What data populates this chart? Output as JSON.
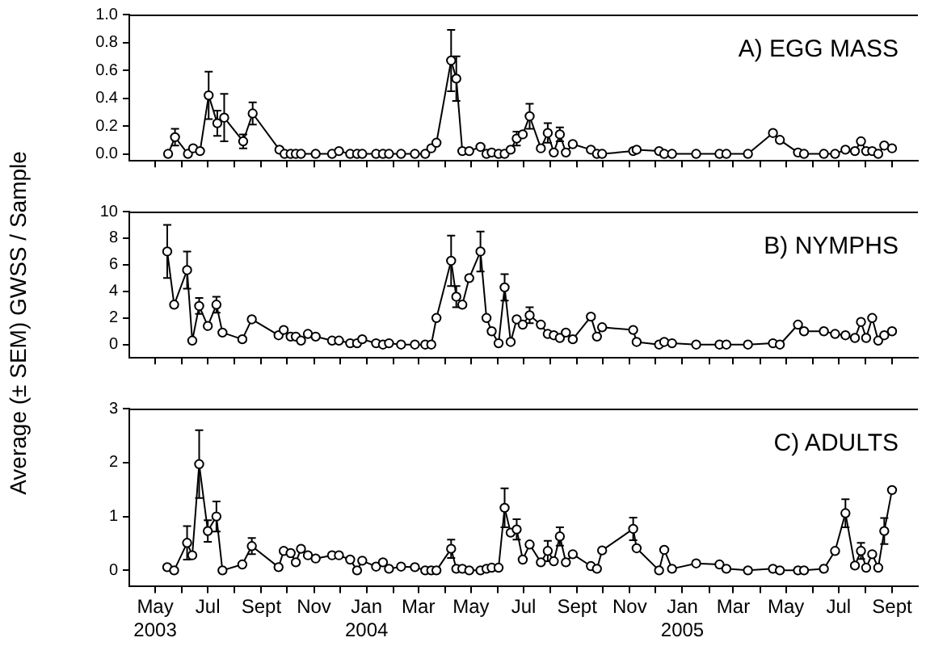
{
  "chart_data": [
    {
      "type": "line",
      "annotations": [
        "A) EGG MASS"
      ],
      "tick_labels": "y",
      "marker": "circle",
      "line_style": "solid",
      "xlim": [
        "2003-04-01",
        "2005-10-01"
      ],
      "xticks": [
        {
          "value": "2003-05-01",
          "label": null
        },
        {
          "value": "2003-06-01",
          "label": null
        },
        {
          "value": "2003-07-01",
          "label": null
        },
        {
          "value": "2003-08-01",
          "label": null
        },
        {
          "value": "2003-09-01",
          "label": null
        },
        {
          "value": "2003-10-01",
          "label": null
        },
        {
          "value": "2003-11-01",
          "label": null
        },
        {
          "value": "2003-12-01",
          "label": null
        },
        {
          "value": "2004-01-01",
          "label": null
        },
        {
          "value": "2004-02-01",
          "label": null
        },
        {
          "value": "2004-03-01",
          "label": null
        },
        {
          "value": "2004-04-01",
          "label": null
        },
        {
          "value": "2004-05-01",
          "label": null
        },
        {
          "value": "2004-06-01",
          "label": null
        },
        {
          "value": "2004-07-01",
          "label": null
        },
        {
          "value": "2004-08-01",
          "label": null
        },
        {
          "value": "2004-09-01",
          "label": null
        },
        {
          "value": "2004-10-01",
          "label": null
        },
        {
          "value": "2004-11-01",
          "label": null
        },
        {
          "value": "2004-12-01",
          "label": null
        },
        {
          "value": "2005-01-01",
          "label": null
        },
        {
          "value": "2005-02-01",
          "label": null
        },
        {
          "value": "2005-03-01",
          "label": null
        },
        {
          "value": "2005-04-01",
          "label": null
        },
        {
          "value": "2005-05-01",
          "label": null
        },
        {
          "value": "2005-06-01",
          "label": null
        },
        {
          "value": "2005-07-01",
          "label": null
        },
        {
          "value": "2005-08-01",
          "label": null
        },
        {
          "value": "2005-09-01",
          "label": null
        }
      ],
      "ylim": [
        -0.05,
        1.0
      ],
      "yticks": [
        {
          "value": 0,
          "label": "0.0"
        },
        0.2,
        0.4,
        0.6,
        0.8,
        {
          "value": 1,
          "label": "1.0"
        }
      ],
      "series": [
        {
          "color": "#000000",
          "x": [
            "2003-05-16",
            "2003-05-24",
            "2003-06-08",
            "2003-06-14",
            "2003-06-22",
            "2003-07-02",
            "2003-07-12",
            "2003-07-20",
            "2003-08-11",
            "2003-08-22",
            "2003-09-22",
            "2003-09-28",
            "2003-10-05",
            "2003-10-11",
            "2003-10-17",
            "2003-11-03",
            "2003-11-22",
            "2003-11-30",
            "2003-12-13",
            "2003-12-21",
            "2003-12-27",
            "2004-01-12",
            "2004-01-20",
            "2004-01-27",
            "2004-02-10",
            "2004-02-26",
            "2004-03-09",
            "2004-03-16",
            "2004-03-22",
            "2004-04-08",
            "2004-04-14",
            "2004-04-21",
            "2004-04-29",
            "2004-05-12",
            "2004-05-19",
            "2004-05-25",
            "2004-06-02",
            "2004-06-09",
            "2004-06-16",
            "2004-06-23",
            "2004-06-30",
            "2004-07-08",
            "2004-07-21",
            "2004-07-29",
            "2004-08-05",
            "2004-08-12",
            "2004-08-19",
            "2004-08-27",
            "2004-09-17",
            "2004-09-24",
            "2004-09-30",
            "2004-11-05",
            "2004-11-09",
            "2004-12-05",
            "2004-12-11",
            "2004-12-20",
            "2005-01-17",
            "2005-02-13",
            "2005-02-21",
            "2005-03-18",
            "2005-04-16",
            "2005-04-24",
            "2005-05-15",
            "2005-05-22",
            "2005-06-14",
            "2005-06-27",
            "2005-07-09",
            "2005-07-20",
            "2005-07-27",
            "2005-08-02",
            "2005-08-09",
            "2005-08-16",
            "2005-08-23",
            "2005-09-01"
          ],
          "values": [
            0,
            0.12,
            0,
            0.04,
            0.02,
            0.42,
            0.22,
            0.26,
            0.09,
            0.29,
            0.03,
            0,
            0,
            0,
            0,
            0,
            0,
            0.02,
            0,
            0,
            0,
            0,
            0,
            0,
            0,
            0,
            0,
            0.04,
            0.08,
            0.67,
            0.54,
            0.02,
            0.02,
            0.05,
            0,
            0.01,
            0,
            0,
            0.03,
            0.11,
            0.14,
            0.27,
            0.04,
            0.15,
            0.01,
            0.14,
            0.01,
            0.07,
            0.03,
            0,
            0,
            0.02,
            0.03,
            0.02,
            0,
            0,
            0,
            0,
            0,
            0,
            0.15,
            0.1,
            0.01,
            0,
            0,
            0,
            0.03,
            0.02,
            0.09,
            0.02,
            0.02,
            0,
            0.06,
            0.04
          ],
          "errors": [
            null,
            0.06,
            null,
            null,
            null,
            0.17,
            0.09,
            0.17,
            0.05,
            0.08,
            null,
            null,
            null,
            null,
            null,
            null,
            null,
            null,
            null,
            null,
            null,
            null,
            null,
            null,
            null,
            null,
            null,
            null,
            null,
            0.22,
            0.16,
            null,
            null,
            null,
            null,
            null,
            null,
            null,
            null,
            0.05,
            null,
            0.09,
            null,
            0.07,
            null,
            0.05,
            null,
            null,
            null,
            null,
            null,
            null,
            null,
            null,
            null,
            null,
            null,
            null,
            null,
            null,
            null,
            null,
            null,
            null,
            null,
            null,
            null,
            null,
            null,
            null,
            null,
            null,
            null,
            null
          ]
        }
      ]
    },
    {
      "type": "line",
      "annotations": [
        "B) NYMPHS"
      ],
      "ylabel": "Average (± SEM) GWSS / Sample",
      "tick_labels": "y",
      "marker": "circle",
      "line_style": "solid",
      "xlim": [
        "2003-04-01",
        "2005-10-01"
      ],
      "xticks": [
        {
          "value": "2003-05-01",
          "label": null
        },
        {
          "value": "2003-06-01",
          "label": null
        },
        {
          "value": "2003-07-01",
          "label": null
        },
        {
          "value": "2003-08-01",
          "label": null
        },
        {
          "value": "2003-09-01",
          "label": null
        },
        {
          "value": "2003-10-01",
          "label": null
        },
        {
          "value": "2003-11-01",
          "label": null
        },
        {
          "value": "2003-12-01",
          "label": null
        },
        {
          "value": "2004-01-01",
          "label": null
        },
        {
          "value": "2004-02-01",
          "label": null
        },
        {
          "value": "2004-03-01",
          "label": null
        },
        {
          "value": "2004-04-01",
          "label": null
        },
        {
          "value": "2004-05-01",
          "label": null
        },
        {
          "value": "2004-06-01",
          "label": null
        },
        {
          "value": "2004-07-01",
          "label": null
        },
        {
          "value": "2004-08-01",
          "label": null
        },
        {
          "value": "2004-09-01",
          "label": null
        },
        {
          "value": "2004-10-01",
          "label": null
        },
        {
          "value": "2004-11-01",
          "label": null
        },
        {
          "value": "2004-12-01",
          "label": null
        },
        {
          "value": "2005-01-01",
          "label": null
        },
        {
          "value": "2005-02-01",
          "label": null
        },
        {
          "value": "2005-03-01",
          "label": null
        },
        {
          "value": "2005-04-01",
          "label": null
        },
        {
          "value": "2005-05-01",
          "label": null
        },
        {
          "value": "2005-06-01",
          "label": null
        },
        {
          "value": "2005-07-01",
          "label": null
        },
        {
          "value": "2005-08-01",
          "label": null
        },
        {
          "value": "2005-09-01",
          "label": null
        }
      ],
      "ylim": [
        -1,
        10
      ],
      "yticks": [
        0,
        2,
        4,
        6,
        8,
        10
      ],
      "series": [
        {
          "color": "#000000",
          "x": [
            "2003-05-15",
            "2003-05-23",
            "2003-06-07",
            "2003-06-13",
            "2003-06-21",
            "2003-07-01",
            "2003-07-11",
            "2003-07-18",
            "2003-08-10",
            "2003-08-21",
            "2003-09-21",
            "2003-09-27",
            "2003-10-05",
            "2003-10-11",
            "2003-10-17",
            "2003-10-25",
            "2003-11-03",
            "2003-11-22",
            "2003-11-30",
            "2003-12-13",
            "2003-12-21",
            "2003-12-27",
            "2004-01-12",
            "2004-01-20",
            "2004-01-27",
            "2004-02-10",
            "2004-02-26",
            "2004-03-09",
            "2004-03-16",
            "2004-03-22",
            "2004-04-08",
            "2004-04-14",
            "2004-04-21",
            "2004-04-29",
            "2004-05-12",
            "2004-05-19",
            "2004-05-25",
            "2004-06-02",
            "2004-06-09",
            "2004-06-16",
            "2004-06-23",
            "2004-06-30",
            "2004-07-08",
            "2004-07-21",
            "2004-07-29",
            "2004-08-05",
            "2004-08-12",
            "2004-08-19",
            "2004-08-27",
            "2004-09-17",
            "2004-09-24",
            "2004-09-30",
            "2004-11-05",
            "2004-11-09",
            "2004-12-05",
            "2004-12-11",
            "2004-12-20",
            "2005-01-17",
            "2005-02-13",
            "2005-02-21",
            "2005-03-18",
            "2005-04-16",
            "2005-04-24",
            "2005-05-15",
            "2005-05-22",
            "2005-06-14",
            "2005-06-27",
            "2005-07-09",
            "2005-07-20",
            "2005-07-27",
            "2005-08-02",
            "2005-08-09",
            "2005-08-16",
            "2005-08-23",
            "2005-09-01"
          ],
          "values": [
            7.0,
            3.0,
            5.6,
            0.3,
            2.9,
            1.4,
            3.0,
            0.9,
            0.4,
            1.9,
            0.7,
            1.1,
            0.6,
            0.6,
            0.3,
            0.8,
            0.6,
            0.3,
            0.3,
            0.1,
            0.1,
            0.4,
            0.1,
            0,
            0.1,
            0,
            0,
            0,
            0,
            2.0,
            6.3,
            3.6,
            3.0,
            5.0,
            7.0,
            2.0,
            1.0,
            0.1,
            4.3,
            0.2,
            1.9,
            1.5,
            2.2,
            1.5,
            0.8,
            0.7,
            0.5,
            0.9,
            0.4,
            2.1,
            0.6,
            1.3,
            1.1,
            0.2,
            0,
            0.2,
            0.1,
            0,
            0,
            0,
            0,
            0.1,
            0,
            1.5,
            1.0,
            1.0,
            0.8,
            0.7,
            0.5,
            1.7,
            0.5,
            2.0,
            0.3,
            0.7,
            1.0
          ],
          "errors": [
            2.0,
            null,
            1.4,
            null,
            0.6,
            null,
            0.6,
            null,
            null,
            null,
            null,
            null,
            null,
            null,
            null,
            null,
            null,
            null,
            null,
            null,
            null,
            null,
            null,
            null,
            null,
            null,
            null,
            null,
            null,
            null,
            1.9,
            0.8,
            null,
            null,
            1.5,
            null,
            null,
            null,
            1.0,
            null,
            null,
            null,
            0.6,
            null,
            null,
            null,
            null,
            null,
            null,
            null,
            null,
            null,
            null,
            null,
            null,
            null,
            null,
            null,
            null,
            null,
            null,
            null,
            null,
            null,
            null,
            null,
            null,
            null,
            null,
            null,
            null,
            null,
            null,
            null,
            null
          ]
        }
      ]
    },
    {
      "type": "line",
      "annotations": [
        "C) ADULTS"
      ],
      "marker": "circle",
      "line_style": "solid",
      "xlim": [
        "2003-04-01",
        "2005-10-01"
      ],
      "xticks": [
        {
          "value": "2003-05-01",
          "label": "May 2003"
        },
        {
          "value": "2003-06-01",
          "label": null
        },
        {
          "value": "2003-07-01",
          "label": "Jul"
        },
        {
          "value": "2003-08-01",
          "label": null
        },
        {
          "value": "2003-09-01",
          "label": "Sept"
        },
        {
          "value": "2003-10-01",
          "label": null
        },
        {
          "value": "2003-11-01",
          "label": "Nov"
        },
        {
          "value": "2003-12-01",
          "label": null
        },
        {
          "value": "2004-01-01",
          "label": "Jan 2004"
        },
        {
          "value": "2004-02-01",
          "label": null
        },
        {
          "value": "2004-03-01",
          "label": "Mar"
        },
        {
          "value": "2004-04-01",
          "label": null
        },
        {
          "value": "2004-05-01",
          "label": "May"
        },
        {
          "value": "2004-06-01",
          "label": null
        },
        {
          "value": "2004-07-01",
          "label": "Jul"
        },
        {
          "value": "2004-08-01",
          "label": null
        },
        {
          "value": "2004-09-01",
          "label": "Sept"
        },
        {
          "value": "2004-10-01",
          "label": null
        },
        {
          "value": "2004-11-01",
          "label": "Nov"
        },
        {
          "value": "2004-12-01",
          "label": null
        },
        {
          "value": "2005-01-01",
          "label": "Jan 2005"
        },
        {
          "value": "2005-02-01",
          "label": null
        },
        {
          "value": "2005-03-01",
          "label": "Mar"
        },
        {
          "value": "2005-04-01",
          "label": null
        },
        {
          "value": "2005-05-01",
          "label": "May"
        },
        {
          "value": "2005-06-01",
          "label": null
        },
        {
          "value": "2005-07-01",
          "label": "Jul"
        },
        {
          "value": "2005-08-01",
          "label": null
        },
        {
          "value": "2005-09-01",
          "label": "Sept"
        }
      ],
      "ylim": [
        -0.3,
        3
      ],
      "yticks": [
        0,
        1,
        2,
        3
      ],
      "series": [
        {
          "color": "#000000",
          "x": [
            "2003-05-15",
            "2003-05-23",
            "2003-06-07",
            "2003-06-13",
            "2003-06-21",
            "2003-07-01",
            "2003-07-11",
            "2003-07-18",
            "2003-08-10",
            "2003-08-21",
            "2003-09-21",
            "2003-09-27",
            "2003-10-05",
            "2003-10-11",
            "2003-10-17",
            "2003-10-25",
            "2003-11-03",
            "2003-11-22",
            "2003-11-30",
            "2003-12-13",
            "2003-12-21",
            "2003-12-27",
            "2004-01-12",
            "2004-01-20",
            "2004-01-27",
            "2004-02-10",
            "2004-02-26",
            "2004-03-09",
            "2004-03-16",
            "2004-03-22",
            "2004-04-08",
            "2004-04-14",
            "2004-04-21",
            "2004-04-29",
            "2004-05-12",
            "2004-05-19",
            "2004-05-25",
            "2004-06-02",
            "2004-06-09",
            "2004-06-16",
            "2004-06-23",
            "2004-06-30",
            "2004-07-08",
            "2004-07-21",
            "2004-07-29",
            "2004-08-05",
            "2004-08-12",
            "2004-08-19",
            "2004-08-27",
            "2004-09-17",
            "2004-09-24",
            "2004-09-30",
            "2004-11-05",
            "2004-11-09",
            "2004-12-05",
            "2004-12-11",
            "2004-12-20",
            "2005-01-17",
            "2005-02-13",
            "2005-02-21",
            "2005-03-18",
            "2005-04-16",
            "2005-04-24",
            "2005-05-15",
            "2005-05-22",
            "2005-06-14",
            "2005-06-27",
            "2005-07-09",
            "2005-07-20",
            "2005-07-27",
            "2005-08-02",
            "2005-08-09",
            "2005-08-16",
            "2005-08-23",
            "2005-09-01"
          ],
          "values": [
            0.06,
            0,
            0.51,
            0.28,
            1.97,
            0.73,
            1.0,
            0,
            0.11,
            0.45,
            0.06,
            0.36,
            0.32,
            0.15,
            0.4,
            0.28,
            0.22,
            0.28,
            0.28,
            0.2,
            0,
            0.18,
            0.07,
            0.15,
            0.03,
            0.07,
            0.06,
            0,
            0,
            0,
            0.4,
            0.03,
            0.03,
            0,
            0,
            0.03,
            0.05,
            0.05,
            1.16,
            0.7,
            0.76,
            0.2,
            0.48,
            0.15,
            0.36,
            0.17,
            0.63,
            0.15,
            0.3,
            0.08,
            0.03,
            0.37,
            0.77,
            0.41,
            0,
            0.38,
            0.03,
            0.13,
            0.11,
            0.03,
            0,
            0.03,
            0,
            0,
            0,
            0.03,
            0.36,
            1.06,
            0.09,
            0.36,
            0.05,
            0.3,
            0.05,
            0.73,
            1.49
          ],
          "errors": [
            null,
            null,
            0.31,
            null,
            0.63,
            0.2,
            0.28,
            null,
            null,
            0.15,
            null,
            null,
            null,
            null,
            null,
            null,
            null,
            null,
            null,
            null,
            null,
            null,
            null,
            null,
            null,
            null,
            null,
            null,
            null,
            null,
            0.17,
            null,
            null,
            null,
            null,
            null,
            null,
            null,
            0.36,
            null,
            0.19,
            null,
            null,
            null,
            0.19,
            null,
            0.17,
            null,
            null,
            null,
            null,
            null,
            0.21,
            null,
            null,
            null,
            null,
            null,
            null,
            null,
            null,
            null,
            null,
            null,
            null,
            null,
            null,
            0.26,
            null,
            0.15,
            null,
            null,
            null,
            0.24,
            null
          ]
        }
      ]
    }
  ]
}
